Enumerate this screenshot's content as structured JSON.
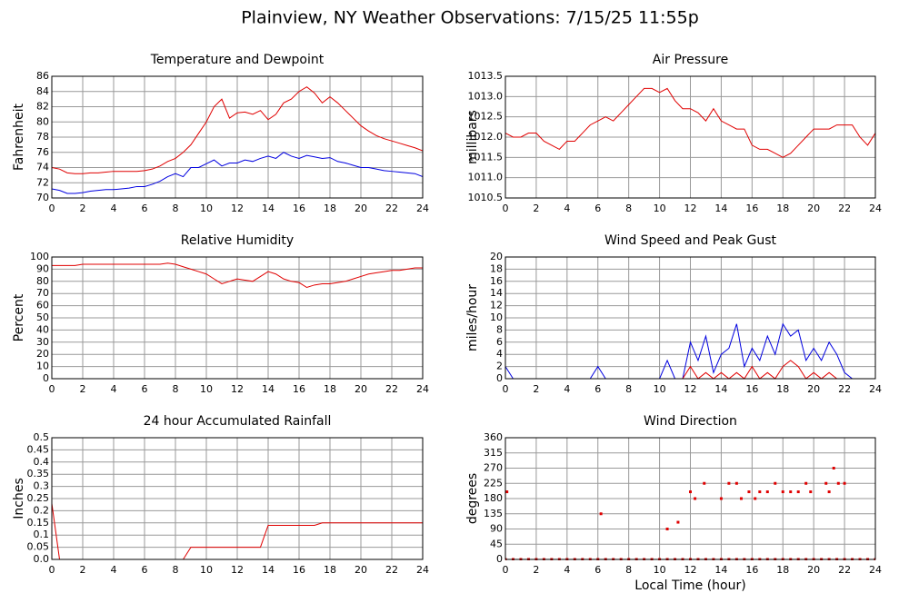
{
  "title": "Plainview, NY Weather Observations: 7/15/25 11:55p",
  "chart_data": [
    {
      "type": "line",
      "title": "Temperature and Dewpoint",
      "ylabel": "Fahrenheit",
      "x": [
        0,
        0.5,
        1,
        1.5,
        2,
        2.5,
        3,
        3.5,
        4,
        4.5,
        5,
        5.5,
        6,
        6.5,
        7,
        7.5,
        8,
        8.5,
        9,
        9.5,
        10,
        10.5,
        11,
        11.5,
        12,
        12.5,
        13,
        13.5,
        14,
        14.5,
        15,
        15.5,
        16,
        16.5,
        17,
        17.5,
        18,
        18.5,
        19,
        19.5,
        20,
        20.5,
        21,
        21.5,
        22,
        22.5,
        23,
        23.5,
        24
      ],
      "series": [
        {
          "color": "#e00000",
          "values": [
            74,
            73.8,
            73.3,
            73.2,
            73.2,
            73.3,
            73.3,
            73.4,
            73.5,
            73.5,
            73.5,
            73.5,
            73.6,
            73.8,
            74.2,
            74.8,
            75.2,
            76,
            77,
            78.5,
            80,
            82,
            83,
            80.5,
            81.2,
            81.3,
            81,
            81.5,
            80.3,
            81,
            82.5,
            83,
            84,
            84.6,
            83.8,
            82.5,
            83.3,
            82.5,
            81.5,
            80.5,
            79.5,
            78.8,
            78.2,
            77.8,
            77.5,
            77.2,
            76.9,
            76.6,
            76.2
          ]
        },
        {
          "color": "#0000e0",
          "values": [
            71.2,
            71,
            70.6,
            70.6,
            70.7,
            70.9,
            71,
            71.1,
            71.1,
            71.2,
            71.3,
            71.5,
            71.5,
            71.8,
            72.2,
            72.8,
            73.2,
            72.8,
            74,
            74,
            74.5,
            75,
            74.2,
            74.6,
            74.6,
            75,
            74.8,
            75.2,
            75.5,
            75.2,
            76,
            75.5,
            75.2,
            75.6,
            75.4,
            75.2,
            75.3,
            74.8,
            74.6,
            74.3,
            74,
            74,
            73.8,
            73.6,
            73.5,
            73.4,
            73.3,
            73.2,
            72.8
          ]
        }
      ],
      "xlim": [
        0,
        24
      ],
      "xticks": [
        0,
        2,
        4,
        6,
        8,
        10,
        12,
        14,
        16,
        18,
        20,
        22,
        24
      ],
      "ylim": [
        70,
        86
      ],
      "yticks": [
        70,
        72,
        74,
        76,
        78,
        80,
        82,
        84,
        86
      ],
      "grid": true
    },
    {
      "type": "line",
      "title": "Air Pressure",
      "ylabel": "millibars",
      "x": [
        0,
        0.5,
        1,
        1.5,
        2,
        2.5,
        3,
        3.5,
        4,
        4.5,
        5,
        5.5,
        6,
        6.5,
        7,
        7.5,
        8,
        8.5,
        9,
        9.5,
        10,
        10.5,
        11,
        11.5,
        12,
        12.5,
        13,
        13.5,
        14,
        14.5,
        15,
        15.5,
        16,
        16.5,
        17,
        17.5,
        18,
        18.5,
        19,
        19.5,
        20,
        20.5,
        21,
        21.5,
        22,
        22.5,
        23,
        23.5,
        24
      ],
      "series": [
        {
          "color": "#e00000",
          "values": [
            1012.1,
            1012.0,
            1012.0,
            1012.1,
            1012.1,
            1011.9,
            1011.8,
            1011.7,
            1011.9,
            1011.9,
            1012.1,
            1012.3,
            1012.4,
            1012.5,
            1012.4,
            1012.6,
            1012.8,
            1013.0,
            1013.2,
            1013.2,
            1013.1,
            1013.2,
            1012.9,
            1012.7,
            1012.7,
            1012.6,
            1012.4,
            1012.7,
            1012.4,
            1012.3,
            1012.2,
            1012.2,
            1011.8,
            1011.7,
            1011.7,
            1011.6,
            1011.5,
            1011.6,
            1011.8,
            1012.0,
            1012.2,
            1012.2,
            1012.2,
            1012.3,
            1012.3,
            1012.3,
            1012.0,
            1011.8,
            1012.1
          ]
        }
      ],
      "xlim": [
        0,
        24
      ],
      "xticks": [
        0,
        2,
        4,
        6,
        8,
        10,
        12,
        14,
        16,
        18,
        20,
        22,
        24
      ],
      "ylim": [
        1010.5,
        1013.5
      ],
      "yticks": [
        1010.5,
        {
          "value": 1011,
          "label": "1011.0"
        },
        1011.5,
        {
          "value": 1012,
          "label": "1012.0"
        },
        1012.5,
        {
          "value": 1013,
          "label": "1013.0"
        },
        1013.5
      ],
      "grid": true
    },
    {
      "type": "line",
      "title": "Relative Humidity",
      "ylabel": "Percent",
      "x": [
        0,
        0.5,
        1,
        1.5,
        2,
        2.5,
        3,
        3.5,
        4,
        4.5,
        5,
        5.5,
        6,
        6.5,
        7,
        7.5,
        8,
        8.5,
        9,
        9.5,
        10,
        10.5,
        11,
        11.5,
        12,
        12.5,
        13,
        13.5,
        14,
        14.5,
        15,
        15.5,
        16,
        16.5,
        17,
        17.5,
        18,
        18.5,
        19,
        19.5,
        20,
        20.5,
        21,
        21.5,
        22,
        22.5,
        23,
        23.5,
        24
      ],
      "series": [
        {
          "color": "#e00000",
          "values": [
            93,
            93,
            93,
            93,
            94,
            94,
            94,
            94,
            94,
            94,
            94,
            94,
            94,
            94,
            94,
            95,
            94,
            92,
            90,
            88,
            86,
            82,
            78,
            80,
            82,
            81,
            80,
            84,
            88,
            86,
            82,
            80,
            79,
            75,
            77,
            78,
            78,
            79,
            80,
            82,
            84,
            86,
            87,
            88,
            89,
            89,
            90,
            91,
            91
          ]
        }
      ],
      "xlim": [
        0,
        24
      ],
      "xticks": [
        0,
        2,
        4,
        6,
        8,
        10,
        12,
        14,
        16,
        18,
        20,
        22,
        24
      ],
      "ylim": [
        0,
        100
      ],
      "yticks": [
        0,
        10,
        20,
        30,
        40,
        50,
        60,
        70,
        80,
        90,
        100
      ],
      "grid": true
    },
    {
      "type": "line",
      "title": "Wind Speed and Peak Gust",
      "ylabel": "miles/hour",
      "x": [
        0,
        0.5,
        1,
        1.5,
        2,
        2.5,
        3,
        3.5,
        4,
        4.5,
        5,
        5.5,
        6,
        6.5,
        7,
        7.5,
        8,
        8.5,
        9,
        9.5,
        10,
        10.5,
        11,
        11.5,
        12,
        12.5,
        13,
        13.5,
        14,
        14.5,
        15,
        15.5,
        16,
        16.5,
        17,
        17.5,
        18,
        18.5,
        19,
        19.5,
        20,
        20.5,
        21,
        21.5,
        22,
        22.5,
        23,
        23.5,
        24
      ],
      "series": [
        {
          "color": "#0000e0",
          "values": [
            2,
            0,
            0,
            0,
            0,
            0,
            0,
            0,
            0,
            0,
            0,
            0,
            2,
            0,
            0,
            0,
            0,
            0,
            0,
            0,
            0,
            3,
            0,
            0,
            6,
            3,
            7,
            1,
            4,
            5,
            9,
            2,
            5,
            3,
            7,
            4,
            9,
            7,
            8,
            3,
            5,
            3,
            6,
            4,
            1,
            0,
            0,
            0,
            0
          ]
        },
        {
          "color": "#e00000",
          "values": [
            0,
            0,
            0,
            0,
            0,
            0,
            0,
            0,
            0,
            0,
            0,
            0,
            0,
            0,
            0,
            0,
            0,
            0,
            0,
            0,
            0,
            0,
            0,
            0,
            2,
            0,
            1,
            0,
            1,
            0,
            1,
            0,
            2,
            0,
            1,
            0,
            2,
            3,
            2,
            0,
            1,
            0,
            1,
            0,
            0,
            0,
            0,
            0,
            0
          ]
        }
      ],
      "xlim": [
        0,
        24
      ],
      "xticks": [
        0,
        2,
        4,
        6,
        8,
        10,
        12,
        14,
        16,
        18,
        20,
        22,
        24
      ],
      "ylim": [
        0,
        20
      ],
      "yticks": [
        0,
        2,
        4,
        6,
        8,
        10,
        12,
        14,
        16,
        18,
        20
      ],
      "grid": true
    },
    {
      "type": "line",
      "title": "24 hour Accumulated Rainfall",
      "ylabel": "Inches",
      "x": [
        0,
        0.5,
        1,
        1.5,
        2,
        2.5,
        3,
        3.5,
        4,
        4.5,
        5,
        5.5,
        6,
        6.5,
        7,
        7.5,
        8,
        8.5,
        9,
        9.5,
        10,
        10.5,
        11,
        11.5,
        12,
        12.5,
        13,
        13.5,
        14,
        14.5,
        15,
        15.5,
        16,
        16.5,
        17,
        17.5,
        18,
        18.5,
        19,
        19.5,
        20,
        20.5,
        21,
        21.5,
        22,
        22.5,
        23,
        23.5,
        24
      ],
      "series": [
        {
          "color": "#e00000",
          "values": [
            0.23,
            0,
            0,
            0,
            0,
            0,
            0,
            0,
            0,
            0,
            0,
            0,
            0,
            0,
            0,
            0,
            0,
            0,
            0.05,
            0.05,
            0.05,
            0.05,
            0.05,
            0.05,
            0.05,
            0.05,
            0.05,
            0.05,
            0.14,
            0.14,
            0.14,
            0.14,
            0.14,
            0.14,
            0.14,
            0.15,
            0.15,
            0.15,
            0.15,
            0.15,
            0.15,
            0.15,
            0.15,
            0.15,
            0.15,
            0.15,
            0.15,
            0.15,
            0.15
          ]
        }
      ],
      "xlim": [
        0,
        24
      ],
      "xticks": [
        0,
        2,
        4,
        6,
        8,
        10,
        12,
        14,
        16,
        18,
        20,
        22,
        24
      ],
      "ylim": [
        0,
        0.5
      ],
      "yticks": [
        {
          "value": 0,
          "label": "0.0"
        },
        0.05,
        0.1,
        0.15,
        0.2,
        0.25,
        0.3,
        0.35,
        0.4,
        0.45,
        0.5
      ],
      "grid": true
    },
    {
      "type": "scatter",
      "title": "Wind Direction",
      "ylabel": "degrees",
      "xlabel": "Local Time (hour)",
      "x": [
        0,
        0.5,
        1,
        1.5,
        2,
        2.5,
        3,
        3.5,
        4,
        4.5,
        5,
        5.5,
        6,
        6.5,
        7,
        7.5,
        8,
        8.5,
        9,
        9.5,
        10,
        10.5,
        11,
        11.5,
        12,
        12.5,
        13,
        13.5,
        14,
        14.5,
        15,
        15.5,
        16,
        16.5,
        17,
        17.5,
        18,
        18.5,
        19,
        19.5,
        20,
        20.5,
        21,
        21.5,
        22,
        22.5,
        23,
        23.5,
        24,
        0.1,
        6.2,
        10.5,
        11.2,
        12,
        12.3,
        12.9,
        14,
        14.5,
        15,
        15.3,
        15.8,
        16.2,
        16.5,
        17,
        17.5,
        18,
        18.5,
        19,
        19.5,
        19.8,
        20.8,
        21,
        21.3,
        21.6,
        22
      ],
      "series": [
        {
          "color": "#e00000",
          "values": [
            0,
            0,
            0,
            0,
            0,
            0,
            0,
            0,
            0,
            0,
            0,
            0,
            0,
            0,
            0,
            0,
            0,
            0,
            0,
            0,
            0,
            0,
            0,
            0,
            0,
            0,
            0,
            0,
            0,
            0,
            0,
            0,
            0,
            0,
            0,
            0,
            0,
            0,
            0,
            0,
            0,
            0,
            0,
            0,
            0,
            0,
            0,
            0,
            0,
            200,
            135,
            90,
            110,
            200,
            180,
            225,
            180,
            225,
            225,
            180,
            200,
            180,
            200,
            200,
            225,
            200,
            200,
            200,
            225,
            200,
            225,
            200,
            270,
            225,
            225
          ]
        }
      ],
      "xlim": [
        0,
        24
      ],
      "xticks": [
        0,
        2,
        4,
        6,
        8,
        10,
        12,
        14,
        16,
        18,
        20,
        22,
        24
      ],
      "ylim": [
        0,
        360
      ],
      "yticks": [
        0,
        45,
        90,
        135,
        180,
        225,
        270,
        315,
        360
      ],
      "grid": true
    }
  ]
}
